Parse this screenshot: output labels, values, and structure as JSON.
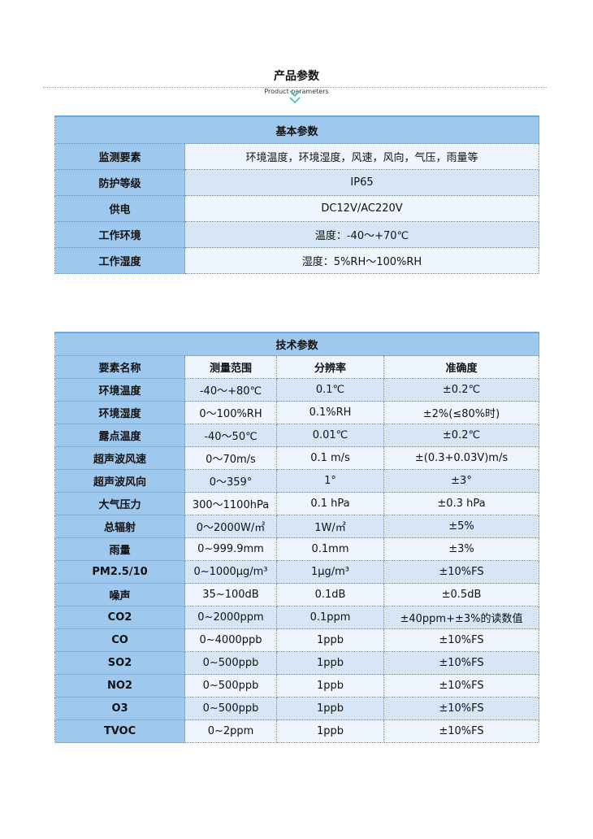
{
  "header": {
    "title": "产品参数",
    "subtitle": "Product parameters",
    "accent": "#3dbfb0"
  },
  "basic": {
    "caption": "基本参数",
    "rows": [
      {
        "label": "监测要素",
        "value": "环境温度，环境湿度，风速，风向，气压，雨量等"
      },
      {
        "label": "防护等级",
        "value": "IP65"
      },
      {
        "label": "供电",
        "value": "DC12V/AC220V"
      },
      {
        "label": "工作环境",
        "value": "温度：-40～+70℃"
      },
      {
        "label": "工作湿度",
        "value": "湿度：5%RH～100%RH"
      }
    ]
  },
  "tech": {
    "caption": "技术参数",
    "columns": [
      "要素名称",
      "测量范围",
      "分辨率",
      "准确度"
    ],
    "rows": [
      [
        "环境温度",
        "-40～+80℃",
        "0.1℃",
        "±0.2℃"
      ],
      [
        "环境湿度",
        "0～100%RH",
        "0.1%RH",
        "±2%(≤80%时)"
      ],
      [
        "露点温度",
        "-40～50℃",
        "0.01℃",
        "±0.2℃"
      ],
      [
        "超声波风速",
        "0～70m/s",
        "0.1 m/s",
        "±(0.3+0.03V)m/s"
      ],
      [
        "超声波风向",
        "0～359°",
        "1°",
        "±3°"
      ],
      [
        "大气压力",
        "300～1100hPa",
        "0.1 hPa",
        "±0.3 hPa"
      ],
      [
        "总辐射",
        "0～2000W/㎡",
        "1W/㎡",
        "±5%"
      ],
      [
        "雨量",
        "0~999.9mm",
        "0.1mm",
        "±3%"
      ],
      [
        "PM2.5/10",
        "0~1000μg/m³",
        "1μg/m³",
        "±10%FS"
      ],
      [
        "噪声",
        "35~100dB",
        "0.1dB",
        "±0.5dB"
      ],
      [
        "CO2",
        "0~2000ppm",
        "0.1ppm",
        "±40ppm+±3%的读数值"
      ],
      [
        "CO",
        "0~4000ppb",
        "1ppb",
        "±10%FS"
      ],
      [
        "SO2",
        "0~500ppb",
        "1ppb",
        "±10%FS"
      ],
      [
        "NO2",
        "0~500ppb",
        "1ppb",
        "±10%FS"
      ],
      [
        "O3",
        "0~500ppb",
        "1ppb",
        "±10%FS"
      ],
      [
        "TVOC",
        "0~2ppm",
        "1ppb",
        "±10%FS"
      ]
    ]
  }
}
